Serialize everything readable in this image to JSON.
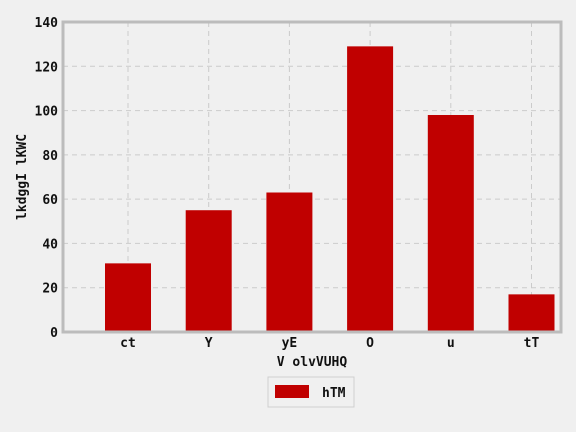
{
  "chart_data": {
    "type": "bar",
    "categories": [
      "ct",
      "Y",
      "yE",
      "O",
      "u",
      "tT"
    ],
    "series": [
      {
        "name": "hTM",
        "values": [
          31,
          55,
          63,
          129,
          98,
          17
        ],
        "color": "#c00000"
      }
    ],
    "xlabel": "V olvVUHQ",
    "ylabel": "lkdggI lKWC",
    "ylim": [
      0,
      140
    ],
    "yticks": [
      0,
      20,
      40,
      60,
      80,
      100,
      120,
      140
    ],
    "grid": true,
    "legend_position": "bottom-center"
  },
  "colors": {
    "background": "#f0f0f0",
    "plot_background": "#f0f0f0",
    "axis_frame": "#bcbcbc",
    "grid": "#cbcbcb",
    "bar": "#c00000"
  }
}
